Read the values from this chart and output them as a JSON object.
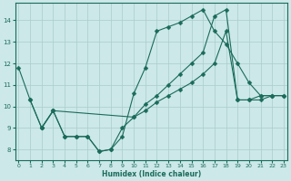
{
  "xlabel": "Humidex (Indice chaleur)",
  "bg_color": "#cce8e8",
  "grid_color": "#aacccc",
  "line_color": "#1a6b5a",
  "line1_x": [
    0,
    1,
    2,
    3,
    4,
    5,
    6,
    7,
    8,
    9,
    10,
    11,
    12,
    13,
    14,
    15,
    16,
    17,
    18,
    19,
    20,
    21,
    22,
    23
  ],
  "line1_y": [
    11.8,
    10.3,
    9.0,
    9.8,
    8.6,
    8.6,
    8.6,
    7.9,
    8.0,
    8.6,
    10.6,
    11.8,
    13.5,
    13.7,
    13.9,
    14.2,
    14.5,
    13.5,
    12.9,
    12.0,
    11.1,
    10.5,
    10.5,
    null
  ],
  "line2_x": [
    2,
    3,
    10,
    11,
    12,
    13,
    14,
    15,
    16,
    17,
    18,
    19,
    20,
    21,
    22,
    23
  ],
  "line2_y": [
    9.0,
    9.8,
    9.5,
    10.1,
    10.5,
    11.0,
    11.5,
    12.0,
    12.5,
    14.2,
    14.5,
    10.3,
    10.3,
    10.5,
    10.5,
    10.5
  ],
  "line3_x": [
    1,
    2,
    3,
    4,
    5,
    6,
    7,
    8,
    9,
    10,
    11,
    12,
    13,
    14,
    15,
    16,
    17,
    18,
    19,
    20,
    21,
    22,
    23
  ],
  "line3_y": [
    10.3,
    9.0,
    9.8,
    8.6,
    8.6,
    8.6,
    7.9,
    8.0,
    9.0,
    9.5,
    9.8,
    10.2,
    10.5,
    10.8,
    11.1,
    11.5,
    12.0,
    13.5,
    10.3,
    10.3,
    10.3,
    10.5,
    10.5
  ],
  "xlim": [
    0,
    23
  ],
  "ylim": [
    7.5,
    14.8
  ],
  "yticks": [
    8,
    9,
    10,
    11,
    12,
    13,
    14
  ],
  "xticks": [
    0,
    1,
    2,
    3,
    4,
    5,
    6,
    7,
    8,
    9,
    10,
    11,
    12,
    13,
    14,
    15,
    16,
    17,
    18,
    19,
    20,
    21,
    22,
    23
  ],
  "markersize": 2.5,
  "lw": 0.8
}
